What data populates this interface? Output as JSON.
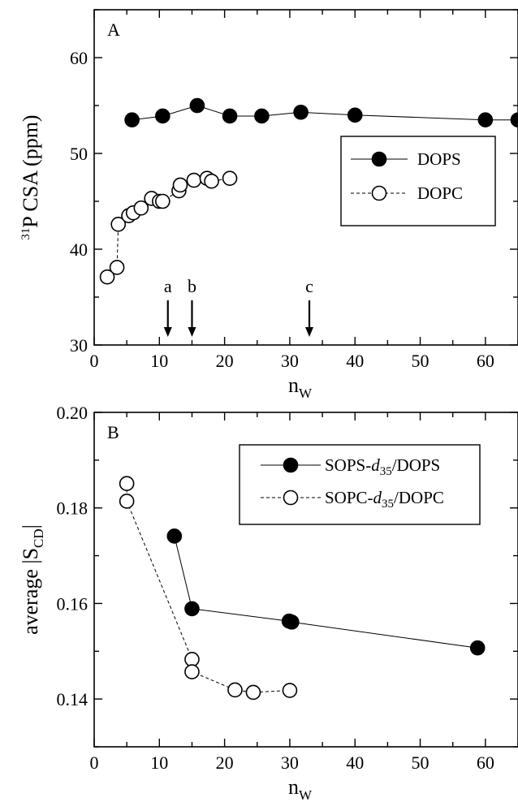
{
  "chart_data": [
    {
      "panel": "A",
      "type": "scatter",
      "title": "",
      "xlabel": "n",
      "xlabel_sub": "W",
      "ylabel_pre": "31",
      "ylabel": "P CSA (ppm)",
      "xlim": [
        0,
        65
      ],
      "ylim": [
        30,
        65
      ],
      "xticks": [
        0,
        10,
        20,
        30,
        40,
        50,
        60
      ],
      "yticks": [
        30,
        40,
        50,
        60
      ],
      "legend_position": "right-middle",
      "series": [
        {
          "name": "DOPS",
          "marker": "filled-circle",
          "line": "solid",
          "points": [
            [
              5.8,
              53.5
            ],
            [
              10.5,
              53.9
            ],
            [
              15.8,
              55.0
            ],
            [
              20.8,
              53.9
            ],
            [
              25.7,
              53.9
            ],
            [
              31.7,
              54.3
            ],
            [
              40.0,
              54.0
            ],
            [
              60.0,
              53.5
            ],
            [
              65.0,
              53.5
            ]
          ]
        },
        {
          "name": "DOPC",
          "marker": "open-circle",
          "line": "dashed",
          "points": [
            [
              2.0,
              37.1
            ],
            [
              3.5,
              38.1
            ],
            [
              3.7,
              42.6
            ],
            [
              5.3,
              43.5
            ],
            [
              6.0,
              43.8
            ],
            [
              7.2,
              44.3
            ],
            [
              8.8,
              45.3
            ],
            [
              10.0,
              45.0
            ],
            [
              10.5,
              45.0
            ],
            [
              13.0,
              46.1
            ],
            [
              13.2,
              46.7
            ],
            [
              15.3,
              47.2
            ],
            [
              17.3,
              47.4
            ],
            [
              18.0,
              47.1
            ],
            [
              20.8,
              47.4
            ]
          ]
        }
      ],
      "arrows": [
        {
          "label": "a",
          "x": 11.3
        },
        {
          "label": "b",
          "x": 15.0
        },
        {
          "label": "c",
          "x": 33.0
        }
      ]
    },
    {
      "panel": "B",
      "type": "scatter",
      "title": "",
      "xlabel": "n",
      "xlabel_sub": "W",
      "ylabel": "average |S",
      "ylabel_sub": "CD",
      "ylabel_post": "|",
      "xlim": [
        0,
        65
      ],
      "ylim": [
        0.13,
        0.2
      ],
      "xticks": [
        0,
        10,
        20,
        30,
        40,
        50,
        60
      ],
      "yticks": [
        0.14,
        0.16,
        0.18,
        0.2
      ],
      "ytick_labels": [
        "0.14",
        "0.16",
        "0.18",
        "0.20"
      ],
      "legend_position": "top-right",
      "series": [
        {
          "name_parts": [
            "SOPS-",
            "d",
            "35",
            "/DOPS"
          ],
          "marker": "filled-circle",
          "line": "solid",
          "points": [
            [
              12.3,
              0.1741
            ],
            [
              15.0,
              0.1589
            ],
            [
              29.9,
              0.1563
            ],
            [
              30.3,
              0.1561
            ],
            [
              58.8,
              0.1507
            ]
          ]
        },
        {
          "name_parts": [
            "SOPC-",
            "d",
            "35",
            "/DOPC"
          ],
          "marker": "open-circle",
          "line": "dashed",
          "points": [
            [
              5.0,
              0.1851
            ],
            [
              5.0,
              0.1814
            ],
            [
              15.0,
              0.1483
            ],
            [
              15.0,
              0.1457
            ],
            [
              21.6,
              0.1419
            ],
            [
              24.4,
              0.1414
            ],
            [
              30.0,
              0.1418
            ]
          ]
        }
      ]
    }
  ]
}
